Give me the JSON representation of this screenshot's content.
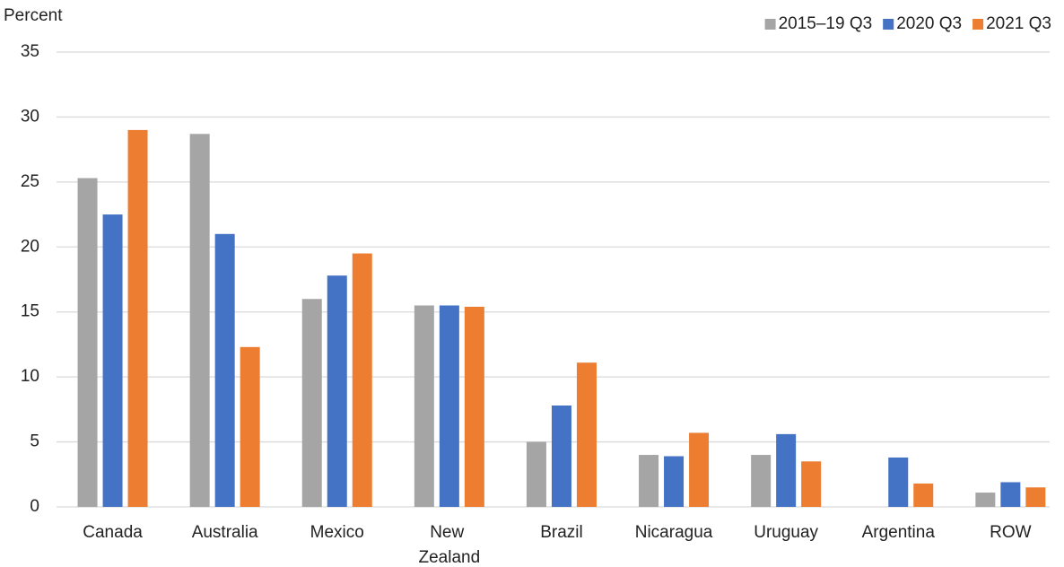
{
  "chart_data": {
    "type": "bar",
    "y_label": "Percent",
    "categories": [
      "Canada",
      "Australia",
      "Mexico",
      "New Zealand",
      "Brazil",
      "Nicaragua",
      "Uruguay",
      "Argentina",
      "ROW"
    ],
    "series": [
      {
        "name": "2015–19 Q3",
        "color": "#a5a5a5",
        "values": [
          25.3,
          28.7,
          16.0,
          15.5,
          5.0,
          4.0,
          4.0,
          null,
          1.1
        ]
      },
      {
        "name": "2020 Q3",
        "color": "#4472c4",
        "values": [
          22.5,
          21.0,
          17.8,
          15.5,
          7.8,
          3.9,
          5.6,
          3.8,
          1.9
        ]
      },
      {
        "name": "2021 Q3",
        "color": "#ed7d31",
        "values": [
          29.0,
          12.3,
          19.5,
          15.4,
          11.1,
          5.7,
          3.5,
          1.8,
          1.5
        ]
      }
    ],
    "ylim": [
      0,
      35
    ],
    "yticks": [
      0,
      5,
      10,
      15,
      20,
      25,
      30,
      35
    ],
    "grid": true,
    "legend": "top-right"
  }
}
